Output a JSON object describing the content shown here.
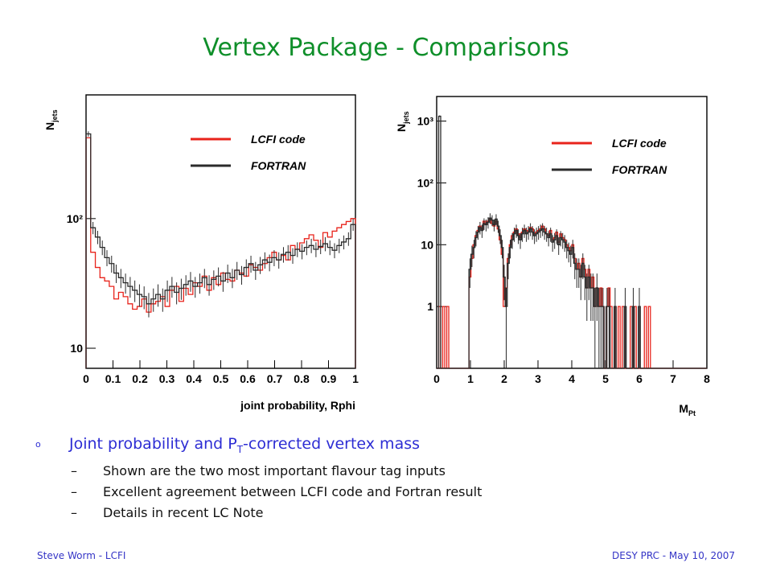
{
  "slide": {
    "title": "Vertex Package - Comparisons",
    "bullet_main_pre": "Joint probability and P",
    "bullet_main_sub": "T",
    "bullet_main_post": "-corrected vertex mass",
    "sub_bullets": [
      "Shown are the two most important flavour tag inputs",
      "Excellent agreement between LCFI code and Fortran result",
      "Details in recent LC Note"
    ],
    "footer_left": "Steve Worm - LCFI",
    "footer_right": "DESY PRC - May 10, 2007"
  },
  "colors": {
    "title": "#0f8f2a",
    "bullet": "#2d2dd4",
    "lcfi": "#e8231b",
    "fortran": "#2b2b2b"
  },
  "chart_data": [
    {
      "type": "histogram",
      "ylabel": "N_jets",
      "xlabel": "joint probability, Rphi",
      "xlim": [
        0,
        1
      ],
      "ylim": [
        7,
        900
      ],
      "yscale": "log",
      "xticks": [
        "0",
        "0.1",
        "0.2",
        "0.3",
        "0.4",
        "0.5",
        "0.6",
        "0.7",
        "0.8",
        "0.9",
        "1"
      ],
      "yticks": [
        {
          "v": 10,
          "label": "10"
        },
        {
          "v": 100,
          "label": "10²"
        }
      ],
      "legend": [
        "LCFI code",
        "FORTRAN"
      ],
      "series": [
        {
          "name": "LCFI code",
          "color": "#e8231b",
          "values": [
            420,
            55,
            42,
            35,
            33,
            30,
            24,
            27,
            25,
            22,
            20,
            21,
            24,
            19,
            22,
            23,
            25,
            21,
            28,
            30,
            23,
            29,
            26,
            32,
            30,
            36,
            28,
            35,
            31,
            38,
            34,
            33,
            40,
            38,
            36,
            44,
            42,
            40,
            45,
            50,
            55,
            48,
            52,
            48,
            62,
            58,
            65,
            70,
            75,
            68,
            60,
            78,
            72,
            80,
            85,
            90,
            95,
            100
          ]
        },
        {
          "name": "FORTRAN",
          "color": "#2b2b2b",
          "values": [
            450,
            85,
            72,
            60,
            50,
            45,
            38,
            35,
            32,
            30,
            28,
            26,
            25,
            22,
            24,
            26,
            24,
            28,
            30,
            27,
            29,
            31,
            33,
            30,
            32,
            35,
            31,
            34,
            36,
            33,
            38,
            35,
            40,
            37,
            42,
            45,
            40,
            44,
            48,
            46,
            50,
            48,
            53,
            55,
            52,
            58,
            56,
            60,
            62,
            58,
            61,
            64,
            60,
            57,
            62,
            66,
            70,
            90
          ]
        }
      ]
    },
    {
      "type": "histogram",
      "ylabel": "N_jets",
      "xlabel": "M_Pt",
      "xlim": [
        0,
        8
      ],
      "ylim": [
        0.1,
        2500
      ],
      "yscale": "log",
      "xticks": [
        "0",
        "1",
        "2",
        "3",
        "4",
        "5",
        "6",
        "7",
        "8"
      ],
      "yticks": [
        {
          "v": 1,
          "label": "1"
        },
        {
          "v": 10,
          "label": "10"
        },
        {
          "v": 100,
          "label": "10²"
        },
        {
          "v": 1000,
          "label": "10³"
        }
      ],
      "legend": [
        "LCFI code",
        "FORTRAN"
      ],
      "series": [
        {
          "name": "LCFI code",
          "color": "#e8231b",
          "values": [
            0.1,
            1,
            0.1,
            1,
            0.1,
            1,
            0.1,
            0.1,
            0.1,
            0.1,
            0.1,
            0.1,
            0.1,
            0.1,
            0.1,
            0.1,
            3,
            6,
            10,
            14,
            17,
            20,
            18,
            24,
            22,
            24,
            26,
            22,
            20,
            24,
            18,
            12,
            7,
            1,
            2,
            6,
            10,
            14,
            16,
            18,
            15,
            13,
            16,
            18,
            17,
            16,
            19,
            18,
            15,
            16,
            17,
            18,
            20,
            18,
            15,
            14,
            17,
            12,
            13,
            16,
            11,
            15,
            13,
            12,
            10,
            9,
            8,
            10,
            6,
            4,
            5,
            3,
            6,
            4,
            2,
            4,
            2,
            3,
            1,
            2,
            1,
            2,
            1,
            0.1,
            1,
            2,
            1,
            0.1,
            1,
            0.1,
            1,
            0.1,
            1,
            0.1,
            0.1,
            0.1,
            1,
            0.1,
            1,
            0.1,
            0.1,
            0.1,
            0.1,
            1,
            0.1,
            1,
            0.1,
            0.1,
            0.1,
            0.1,
            0.1,
            0.1,
            0.1,
            0.1,
            0.1,
            0.1,
            0.1,
            0.1,
            0.1,
            0.1,
            0.1,
            0.1,
            0.1,
            0.1,
            0.1,
            0.1,
            0.1,
            0.1,
            0.1,
            0.1,
            0.1,
            0.1,
            0.1,
            0.1
          ]
        },
        {
          "name": "FORTRAN",
          "color": "#2b2b2b",
          "values": [
            0.1,
            1200,
            0.1,
            0.1,
            0.1,
            0.1,
            0.1,
            0.1,
            0.1,
            0.1,
            0.1,
            0.1,
            0.1,
            0.1,
            0.1,
            0.1,
            4,
            7,
            9,
            13,
            16,
            19,
            17,
            22,
            21,
            23,
            27,
            25,
            21,
            26,
            20,
            14,
            9,
            3,
            1,
            5,
            9,
            12,
            15,
            17,
            14,
            12,
            15,
            17,
            15,
            16,
            18,
            16,
            14,
            15,
            16,
            17,
            18,
            16,
            15,
            13,
            15,
            11,
            12,
            14,
            10,
            13,
            12,
            11,
            9,
            8,
            7,
            9,
            5,
            4,
            4,
            3,
            5,
            3,
            2,
            3,
            2,
            2,
            1,
            2,
            1,
            1,
            1,
            0.1,
            1,
            1,
            0.1,
            0.1,
            1,
            0.1,
            0.1,
            0.1,
            0.1,
            1,
            0.1,
            0.1,
            0.1,
            1,
            0.1,
            0.1,
            1,
            0.1,
            0.1,
            0.1,
            0.1,
            0.1,
            0.1,
            0.1,
            0.1,
            0.1,
            0.1,
            0.1,
            0.1,
            0.1,
            0.1,
            0.1,
            0.1,
            0.1,
            0.1,
            0.1,
            0.1,
            0.1,
            0.1,
            0.1,
            0.1,
            0.1,
            0.1,
            0.1,
            0.1,
            0.1,
            0.1,
            0.1,
            0.1,
            0.1
          ]
        }
      ]
    }
  ]
}
